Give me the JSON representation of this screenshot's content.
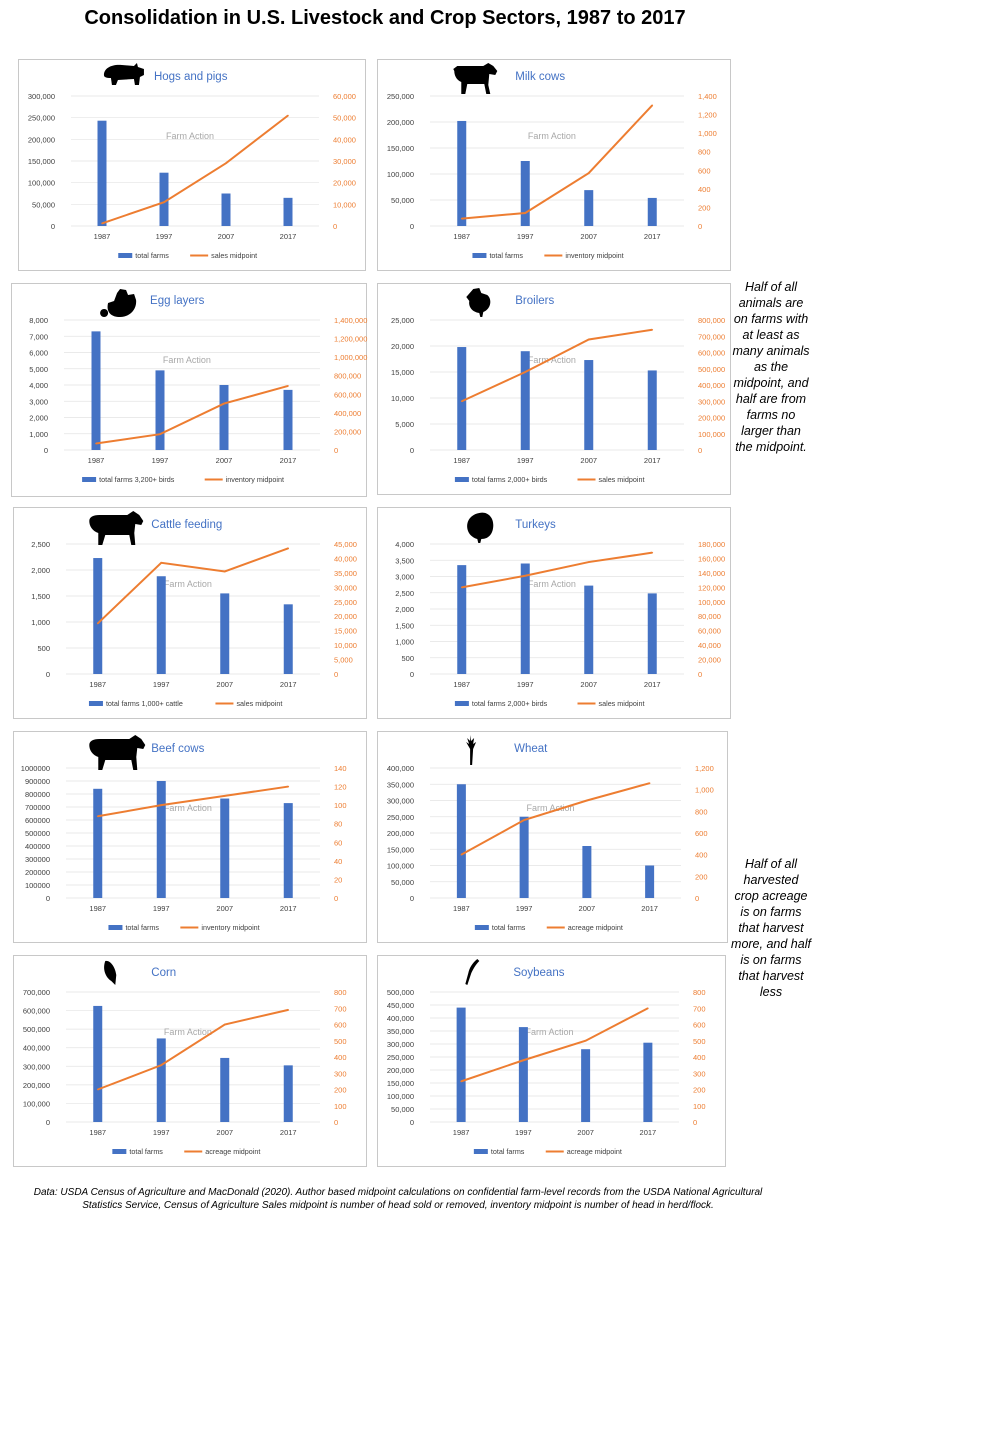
{
  "page": {
    "title": "Consolidation in U.S. Livestock and Crop Sectors, 1987 to 2017",
    "side_note_livestock": "Half of all animals are on farms with at least as many animals as the midpoint, and half are from farms no larger than the midpoint.",
    "side_note_crops": "Half of all harvested crop acreage is on farms that harvest more, and half is on farms that harvest less",
    "footnote": "Data: USDA Census of Agriculture and MacDonald (2020). Author based midpoint calculations on confidential farm-level records from the USDA National Agricultural Statistics Service, Census of Agriculture Sales midpoint is number of head sold or removed, inventory midpoint is number of head in herd/flock.",
    "watermark": "Farm Action"
  },
  "colors": {
    "bar": "#4472c4",
    "line": "#ed7d31",
    "axis_left": "#404040",
    "axis_right": "#ed7d31",
    "title": "#4472c4",
    "grid": "#e3e3e3"
  },
  "chart_data": [
    {
      "type": "bar+line",
      "title": "Hogs and pigs",
      "icon": "pig-icon",
      "categories": [
        "1987",
        "1997",
        "2007",
        "2017"
      ],
      "series": [
        {
          "name": "total farms",
          "type": "bar",
          "axis": "left",
          "values": [
            243000,
            123000,
            75000,
            65000
          ]
        },
        {
          "name": "sales midpoint",
          "type": "line",
          "axis": "right",
          "values": [
            1200,
            11000,
            29000,
            51000
          ]
        }
      ],
      "ylim_left": [
        0,
        300000
      ],
      "yticks_left": [
        "0",
        "50,000",
        "100,000",
        "150,000",
        "200,000",
        "250,000",
        "300,000"
      ],
      "ylim_right": [
        0,
        60000
      ],
      "yticks_right": [
        "0",
        "10,000",
        "20,000",
        "30,000",
        "40,000",
        "50,000",
        "60,000"
      ]
    },
    {
      "type": "bar+line",
      "title": "Milk cows",
      "icon": "cow-icon",
      "categories": [
        "1987",
        "1997",
        "2007",
        "2017"
      ],
      "series": [
        {
          "name": "total farms",
          "type": "bar",
          "axis": "left",
          "values": [
            202000,
            125000,
            69000,
            54000
          ]
        },
        {
          "name": "inventory midpoint",
          "type": "line",
          "axis": "right",
          "values": [
            80,
            140,
            570,
            1300
          ]
        }
      ],
      "ylim_left": [
        0,
        250000
      ],
      "yticks_left": [
        "0",
        "50,000",
        "100,000",
        "150,000",
        "200,000",
        "250,000"
      ],
      "ylim_right": [
        0,
        1400
      ],
      "yticks_right": [
        "0",
        "200",
        "400",
        "600",
        "800",
        "1,000",
        "1,200",
        "1,400"
      ]
    },
    {
      "type": "bar+line",
      "title": "Egg layers",
      "icon": "hen-icon",
      "categories": [
        "1987",
        "1997",
        "2007",
        "2017"
      ],
      "series": [
        {
          "name": "total farms 3,200+ birds",
          "type": "bar",
          "axis": "left",
          "values": [
            7300,
            4900,
            4000,
            3700
          ]
        },
        {
          "name": "inventory midpoint",
          "type": "line",
          "axis": "right",
          "values": [
            70000,
            170000,
            500000,
            690000
          ]
        }
      ],
      "ylim_left": [
        0,
        8000
      ],
      "yticks_left": [
        "0",
        "1,000",
        "2,000",
        "3,000",
        "4,000",
        "5,000",
        "6,000",
        "7,000",
        "8,000"
      ],
      "ylim_right": [
        0,
        1400000
      ],
      "yticks_right": [
        "0",
        "200,000",
        "400,000",
        "600,000",
        "800,000",
        "1,000,000",
        "1,200,000",
        "1,400,000"
      ]
    },
    {
      "type": "bar+line",
      "title": "Broilers",
      "icon": "chicken-icon",
      "categories": [
        "1987",
        "1997",
        "2007",
        "2017"
      ],
      "series": [
        {
          "name": "total farms 2,000+ birds",
          "type": "bar",
          "axis": "left",
          "values": [
            19800,
            19000,
            17300,
            15300
          ]
        },
        {
          "name": "sales midpoint",
          "type": "line",
          "axis": "right",
          "values": [
            300000,
            480000,
            680000,
            740000
          ]
        }
      ],
      "ylim_left": [
        0,
        25000
      ],
      "yticks_left": [
        "0",
        "5,000",
        "10,000",
        "15,000",
        "20,000",
        "25,000"
      ],
      "ylim_right": [
        0,
        800000
      ],
      "yticks_right": [
        "0",
        "100,000",
        "200,000",
        "300,000",
        "400,000",
        "500,000",
        "600,000",
        "700,000",
        "800,000"
      ]
    },
    {
      "type": "bar+line",
      "title": "Cattle feeding",
      "icon": "steer-icon",
      "categories": [
        "1987",
        "1997",
        "2007",
        "2017"
      ],
      "series": [
        {
          "name": "total farms 1,000+ cattle",
          "type": "bar",
          "axis": "left",
          "values": [
            2230,
            1880,
            1550,
            1340
          ]
        },
        {
          "name": "sales midpoint",
          "type": "line",
          "axis": "right",
          "values": [
            17500,
            38500,
            35500,
            43500
          ]
        }
      ],
      "ylim_left": [
        0,
        2500
      ],
      "yticks_left": [
        "0",
        "500",
        "1,000",
        "1,500",
        "2,000",
        "2,500"
      ],
      "ylim_right": [
        0,
        45000
      ],
      "yticks_right": [
        "0",
        "5,000",
        "10,000",
        "15,000",
        "20,000",
        "25,000",
        "30,000",
        "35,000",
        "40,000",
        "45,000"
      ]
    },
    {
      "type": "bar+line",
      "title": "Turkeys",
      "icon": "turkey-icon",
      "categories": [
        "1987",
        "1997",
        "2007",
        "2017"
      ],
      "series": [
        {
          "name": "total farms 2,000+ birds",
          "type": "bar",
          "axis": "left",
          "values": [
            3350,
            3400,
            2720,
            2480
          ]
        },
        {
          "name": "sales midpoint",
          "type": "line",
          "axis": "right",
          "values": [
            120000,
            136000,
            155000,
            168000
          ]
        }
      ],
      "ylim_left": [
        0,
        4000
      ],
      "yticks_left": [
        "0",
        "500",
        "1,000",
        "1,500",
        "2,000",
        "2,500",
        "3,000",
        "3,500",
        "4,000"
      ],
      "ylim_right": [
        0,
        180000
      ],
      "yticks_right": [
        "0",
        "20,000",
        "40,000",
        "60,000",
        "80,000",
        "100,000",
        "120,000",
        "140,000",
        "160,000",
        "180,000"
      ]
    },
    {
      "type": "bar+line",
      "title": "Beef cows",
      "icon": "beef-cow-icon",
      "categories": [
        "1987",
        "1997",
        "2007",
        "2017"
      ],
      "series": [
        {
          "name": "total farms",
          "type": "bar",
          "axis": "left",
          "values": [
            840000,
            900000,
            765000,
            730000
          ]
        },
        {
          "name": "inventory midpoint",
          "type": "line",
          "axis": "right",
          "values": [
            88,
            100,
            110,
            120
          ]
        }
      ],
      "ylim_left": [
        0,
        1000000
      ],
      "yticks_left": [
        "0",
        "100000",
        "200000",
        "300000",
        "400000",
        "500000",
        "600000",
        "700000",
        "800000",
        "900000",
        "1000000"
      ],
      "ylim_right": [
        0,
        140
      ],
      "yticks_right": [
        "0",
        "20",
        "40",
        "60",
        "80",
        "100",
        "120",
        "140"
      ]
    },
    {
      "type": "bar+line",
      "title": "Wheat",
      "icon": "wheat-icon",
      "categories": [
        "1987",
        "1997",
        "2007",
        "2017"
      ],
      "series": [
        {
          "name": "total farms",
          "type": "bar",
          "axis": "left",
          "values": [
            350000,
            250000,
            160000,
            100000
          ]
        },
        {
          "name": "acreage midpoint",
          "type": "line",
          "axis": "right",
          "values": [
            400,
            720,
            900,
            1060
          ]
        }
      ],
      "ylim_left": [
        0,
        400000
      ],
      "yticks_left": [
        "0",
        "50,000",
        "100,000",
        "150,000",
        "200,000",
        "250,000",
        "300,000",
        "350,000",
        "400,000"
      ],
      "ylim_right": [
        0,
        1200
      ],
      "yticks_right": [
        "0",
        "200",
        "400",
        "600",
        "800",
        "1,000",
        "1,200"
      ]
    },
    {
      "type": "bar+line",
      "title": "Corn",
      "icon": "corn-icon",
      "categories": [
        "1987",
        "1997",
        "2007",
        "2017"
      ],
      "series": [
        {
          "name": "total farms",
          "type": "bar",
          "axis": "left",
          "values": [
            625000,
            450000,
            345000,
            305000
          ]
        },
        {
          "name": "acreage midpoint",
          "type": "line",
          "axis": "right",
          "values": [
            200,
            350,
            600,
            690
          ]
        }
      ],
      "ylim_left": [
        0,
        700000
      ],
      "yticks_left": [
        "0",
        "100,000",
        "200,000",
        "300,000",
        "400,000",
        "500,000",
        "600,000",
        "700,000"
      ],
      "ylim_right": [
        0,
        800
      ],
      "yticks_right": [
        "0",
        "100",
        "200",
        "300",
        "400",
        "500",
        "600",
        "700",
        "800"
      ]
    },
    {
      "type": "bar+line",
      "title": "Soybeans",
      "icon": "soybean-icon",
      "categories": [
        "1987",
        "1997",
        "2007",
        "2017"
      ],
      "series": [
        {
          "name": "total farms",
          "type": "bar",
          "axis": "left",
          "values": [
            440000,
            365000,
            280000,
            305000
          ]
        },
        {
          "name": "acreage midpoint",
          "type": "line",
          "axis": "right",
          "values": [
            250,
            380,
            500,
            700
          ]
        }
      ],
      "ylim_left": [
        0,
        500000
      ],
      "yticks_left": [
        "0",
        "50,000",
        "100,000",
        "150,000",
        "200,000",
        "250,000",
        "300,000",
        "350,000",
        "400,000",
        "450,000",
        "500,000"
      ],
      "ylim_right": [
        0,
        800
      ],
      "yticks_right": [
        "0",
        "100",
        "200",
        "300",
        "400",
        "500",
        "600",
        "700",
        "800"
      ]
    }
  ]
}
